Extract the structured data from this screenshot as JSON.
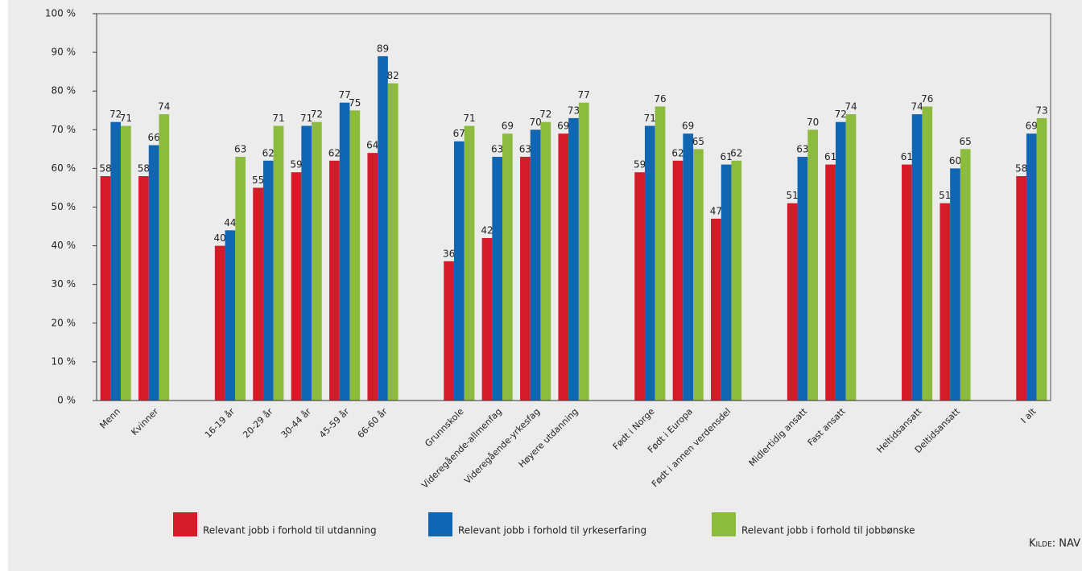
{
  "chart_data": {
    "type": "bar",
    "categories": [
      "Menn",
      "Kvinner",
      null,
      "16-19 år",
      "20-29 år",
      "30-44 år",
      "45-59 år",
      "66-60 år",
      null,
      "Grunnskole",
      "Videregående-allmenfag",
      "Videregående-yrkesfag",
      "Høyere utdanning",
      null,
      "Født i Norge",
      "Født i Europa",
      "Født i annen verdensdel",
      null,
      "Midlertidig ansatt",
      "Fast ansatt",
      null,
      "Heltidsansatt",
      "Deltidsansatt",
      null,
      "I alt"
    ],
    "series": [
      {
        "name": "Relevant jobb i forhold til  utdanning",
        "color": "#d51b2a",
        "values": [
          58,
          58,
          null,
          40,
          55,
          59,
          62,
          64,
          null,
          36,
          42,
          63,
          69,
          null,
          59,
          62,
          47,
          null,
          51,
          61,
          null,
          61,
          51,
          null,
          58
        ]
      },
      {
        "name": "Relevant jobb i forhold til  yrkeserfaring",
        "color": "#1066b3",
        "values": [
          72,
          66,
          null,
          44,
          62,
          71,
          77,
          89,
          null,
          67,
          63,
          70,
          73,
          null,
          71,
          69,
          61,
          null,
          63,
          72,
          null,
          74,
          60,
          null,
          69
        ]
      },
      {
        "name": "Relevant jobb i forhold til  jobbønske",
        "color": "#8cbb3e",
        "values": [
          71,
          74,
          null,
          63,
          71,
          72,
          75,
          82,
          null,
          71,
          69,
          72,
          77,
          null,
          76,
          65,
          62,
          null,
          70,
          74,
          null,
          76,
          65,
          null,
          73
        ]
      }
    ],
    "ylim": [
      0,
      100
    ],
    "yticks": [
      {
        "value": 0,
        "label": "0 %"
      },
      {
        "value": 10,
        "label": "10 %"
      },
      {
        "value": 20,
        "label": "20 %"
      },
      {
        "value": 30,
        "label": "30 %"
      },
      {
        "value": 40,
        "label": "40 %"
      },
      {
        "value": 50,
        "label": "50 %"
      },
      {
        "value": 60,
        "label": "60 %"
      },
      {
        "value": 70,
        "label": "70 %"
      },
      {
        "value": 80,
        "label": "80 %"
      },
      {
        "value": 90,
        "label": "90 %"
      },
      {
        "value": 100,
        "label": "100 %"
      }
    ],
    "legend": "bottom",
    "source": "Kilde: NAV"
  }
}
